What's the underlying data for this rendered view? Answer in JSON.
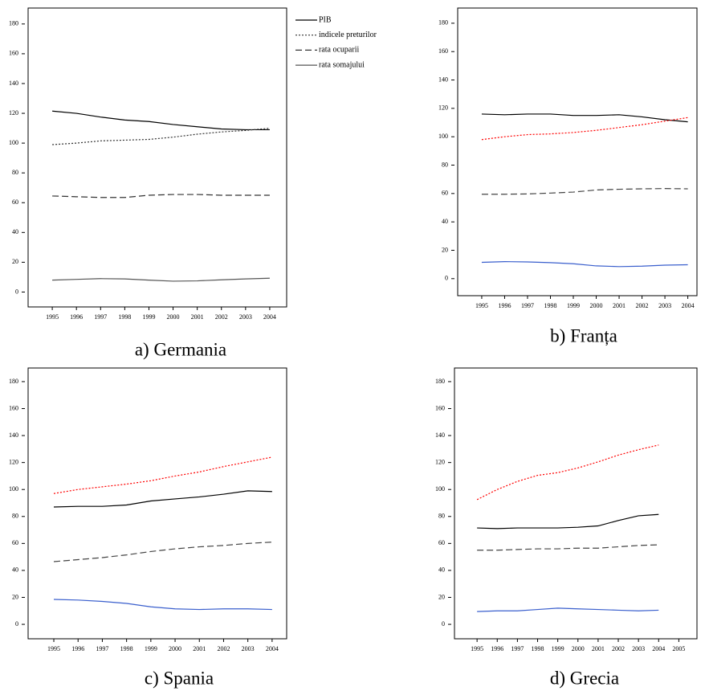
{
  "chart_data": [
    {
      "type": "line",
      "title": "a) Germania",
      "x": [
        1995,
        1996,
        1997,
        1998,
        1999,
        2000,
        2001,
        2002,
        2003,
        2004
      ],
      "xlim": [
        1994,
        2004.7
      ],
      "ylim": [
        -10,
        190.7
      ],
      "xticks": [
        1995,
        1996,
        1997,
        1998,
        1999,
        2000,
        2001,
        2002,
        2003,
        2004
      ],
      "yticks": [
        0,
        20,
        40,
        60,
        80,
        100,
        120,
        140,
        160,
        180
      ],
      "legend": "right",
      "series": [
        {
          "name": "PIB",
          "color": "#000000",
          "style": "solid",
          "values": [
            121.5,
            120,
            117.5,
            115.5,
            114.5,
            112.5,
            111,
            109.5,
            109,
            109
          ]
        },
        {
          "name": "indicele preturilor",
          "color": "#333333",
          "style": "dotted",
          "values": [
            99,
            100,
            101.5,
            102,
            102.5,
            104,
            106,
            107.5,
            108.5,
            110
          ]
        },
        {
          "name": "rata ocuparii",
          "color": "#333333",
          "style": "dashed",
          "values": [
            64.5,
            64,
            63.5,
            63.5,
            65,
            65.5,
            65.5,
            65,
            65,
            65
          ]
        },
        {
          "name": "rata somajului",
          "color": "#555555",
          "style": "solid",
          "values": [
            8,
            8.5,
            9,
            8.8,
            8,
            7.3,
            7.5,
            8.2,
            8.8,
            9.3
          ]
        }
      ]
    },
    {
      "type": "line",
      "title": "b) Franța",
      "x": [
        1995,
        1996,
        1997,
        1998,
        1999,
        2000,
        2001,
        2002,
        2003,
        2004
      ],
      "xlim": [
        1993.95,
        2004.4
      ],
      "ylim": [
        -12,
        190.7
      ],
      "xticks": [
        1995,
        1996,
        1997,
        1998,
        1999,
        2000,
        2001,
        2002,
        2003,
        2004
      ],
      "yticks": [
        0,
        20,
        40,
        60,
        80,
        100,
        120,
        140,
        160,
        180
      ],
      "series": [
        {
          "color": "#000000",
          "style": "solid",
          "values": [
            116,
            115.5,
            116,
            116,
            115,
            115,
            115.5,
            114,
            112,
            110.5
          ]
        },
        {
          "color": "#ff0000",
          "style": "dotted",
          "values": [
            98,
            100,
            101.5,
            102,
            103,
            104.5,
            106.5,
            108.5,
            111,
            113.5
          ]
        },
        {
          "color": "#444444",
          "style": "dashed",
          "values": [
            59.5,
            59.5,
            59.7,
            60.3,
            61,
            62.5,
            63,
            63.3,
            63.5,
            63.3
          ]
        },
        {
          "color": "#3a5fcd",
          "style": "solid",
          "values": [
            11.5,
            12,
            11.8,
            11.3,
            10.5,
            9,
            8.5,
            8.8,
            9.5,
            9.8
          ]
        }
      ]
    },
    {
      "type": "line",
      "title": "c) Spania",
      "x": [
        1995,
        1996,
        1997,
        1998,
        1999,
        2000,
        2001,
        2002,
        2003,
        2004
      ],
      "xlim": [
        1993.94,
        2004.6
      ],
      "ylim": [
        -10.7,
        190.1
      ],
      "xticks": [
        1995,
        1996,
        1997,
        1998,
        1999,
        2000,
        2001,
        2002,
        2003,
        2004
      ],
      "yticks": [
        0,
        20,
        40,
        60,
        80,
        100,
        120,
        140,
        160,
        180
      ],
      "series": [
        {
          "color": "#000000",
          "style": "solid",
          "values": [
            87,
            87.5,
            87.5,
            88.5,
            91.5,
            93,
            94.5,
            96.5,
            99,
            98.5
          ]
        },
        {
          "color": "#ff0000",
          "style": "dotted",
          "values": [
            97,
            100,
            102,
            104,
            106.5,
            110,
            113,
            117,
            120.5,
            124
          ]
        },
        {
          "color": "#444444",
          "style": "dashed",
          "values": [
            46.5,
            48,
            49.5,
            51.5,
            54,
            56,
            57.5,
            58.5,
            60,
            61
          ]
        },
        {
          "color": "#3a5fcd",
          "style": "solid",
          "values": [
            18.5,
            18,
            17,
            15.5,
            13,
            11.5,
            11,
            11.5,
            11.5,
            11
          ]
        }
      ]
    },
    {
      "type": "line",
      "title": "d) Grecia",
      "x": [
        1995,
        1996,
        1997,
        1998,
        1999,
        2000,
        2001,
        2002,
        2003,
        2004
      ],
      "xlim": [
        1993.88,
        2005.9
      ],
      "ylim": [
        -10.7,
        190.1
      ],
      "xticks": [
        1995,
        1996,
        1997,
        1998,
        1999,
        2000,
        2001,
        2002,
        2003,
        2004,
        2005
      ],
      "yticks": [
        0,
        20,
        40,
        60,
        80,
        100,
        120,
        140,
        160,
        180
      ],
      "series": [
        {
          "color": "#000000",
          "style": "solid",
          "values": [
            71.5,
            71,
            71.5,
            71.5,
            71.5,
            72,
            73,
            77,
            80.5,
            81.5
          ]
        },
        {
          "color": "#ff0000",
          "style": "dotted",
          "values": [
            92.5,
            100,
            106,
            110.5,
            112.5,
            116,
            120.5,
            125.5,
            129.5,
            133
          ]
        },
        {
          "color": "#444444",
          "style": "dashed",
          "values": [
            55,
            55,
            55.5,
            56,
            56,
            56.5,
            56.5,
            57.5,
            58.5,
            59
          ]
        },
        {
          "color": "#3a5fcd",
          "style": "solid",
          "values": [
            9.5,
            10,
            10,
            11,
            12,
            11.5,
            11,
            10.5,
            10,
            10.5
          ]
        }
      ]
    }
  ]
}
